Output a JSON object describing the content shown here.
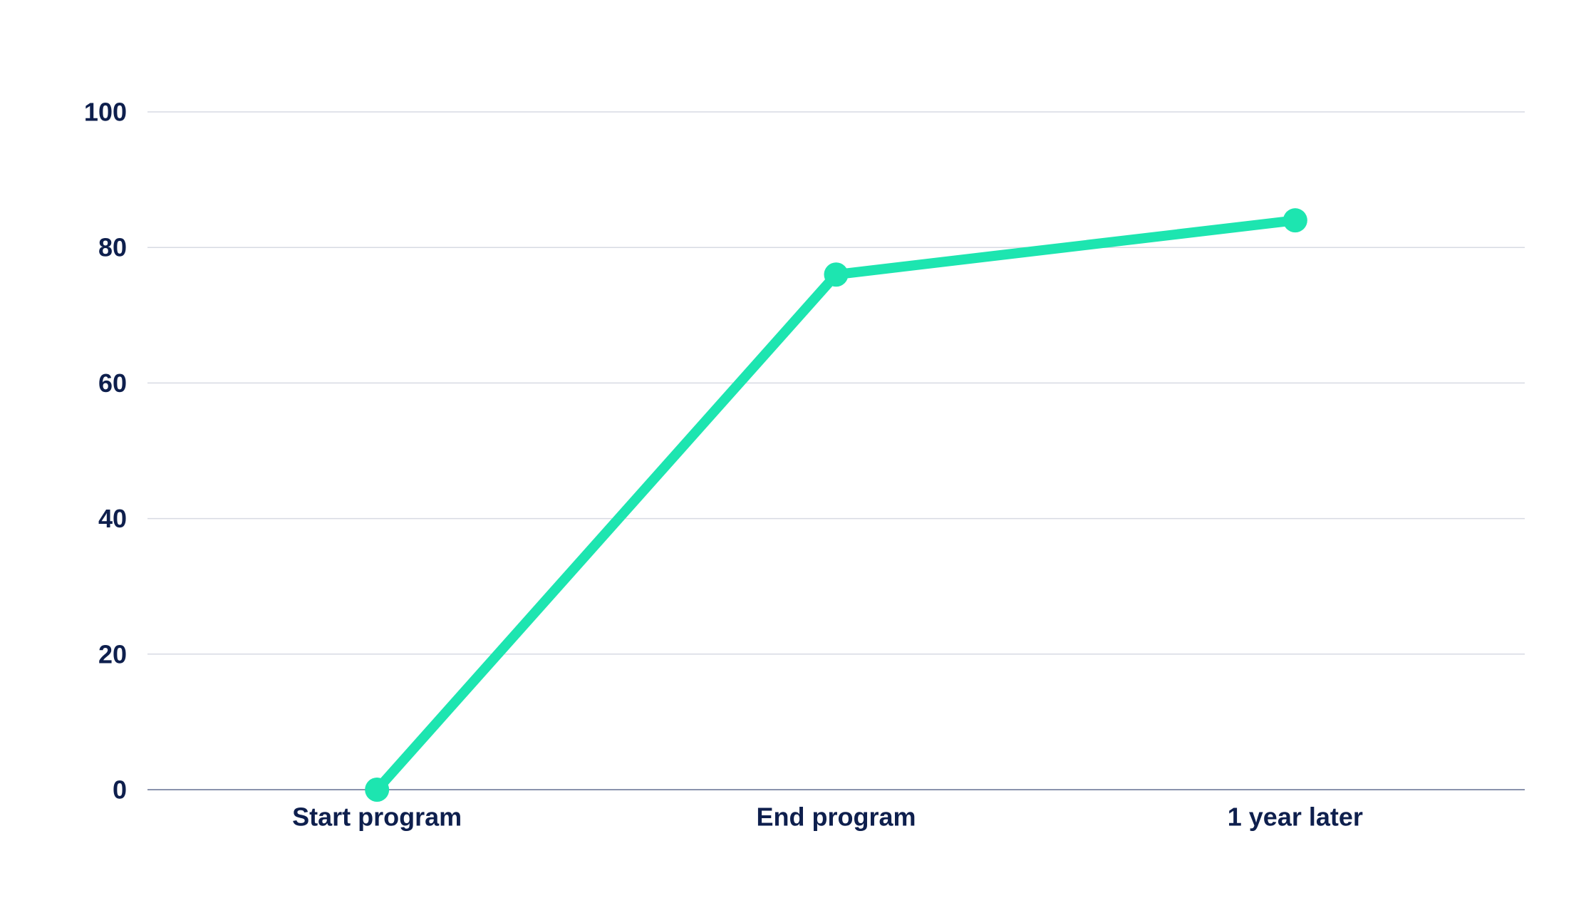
{
  "chart_data": {
    "type": "line",
    "categories": [
      "Start program",
      "End program",
      "1 year later"
    ],
    "series": [
      {
        "values": [
          0,
          76,
          84
        ]
      }
    ],
    "ylim": [
      0,
      100
    ],
    "yticks": [
      0,
      20,
      40,
      60,
      80,
      100
    ],
    "grid": true,
    "legend": "none",
    "title": "",
    "xlabel": "",
    "ylabel": ""
  },
  "colors": {
    "line": "#1de5b0",
    "text": "#0e1f4d",
    "grid": "#d7dae3",
    "axis": "#8a93ad",
    "background": "#ffffff"
  }
}
